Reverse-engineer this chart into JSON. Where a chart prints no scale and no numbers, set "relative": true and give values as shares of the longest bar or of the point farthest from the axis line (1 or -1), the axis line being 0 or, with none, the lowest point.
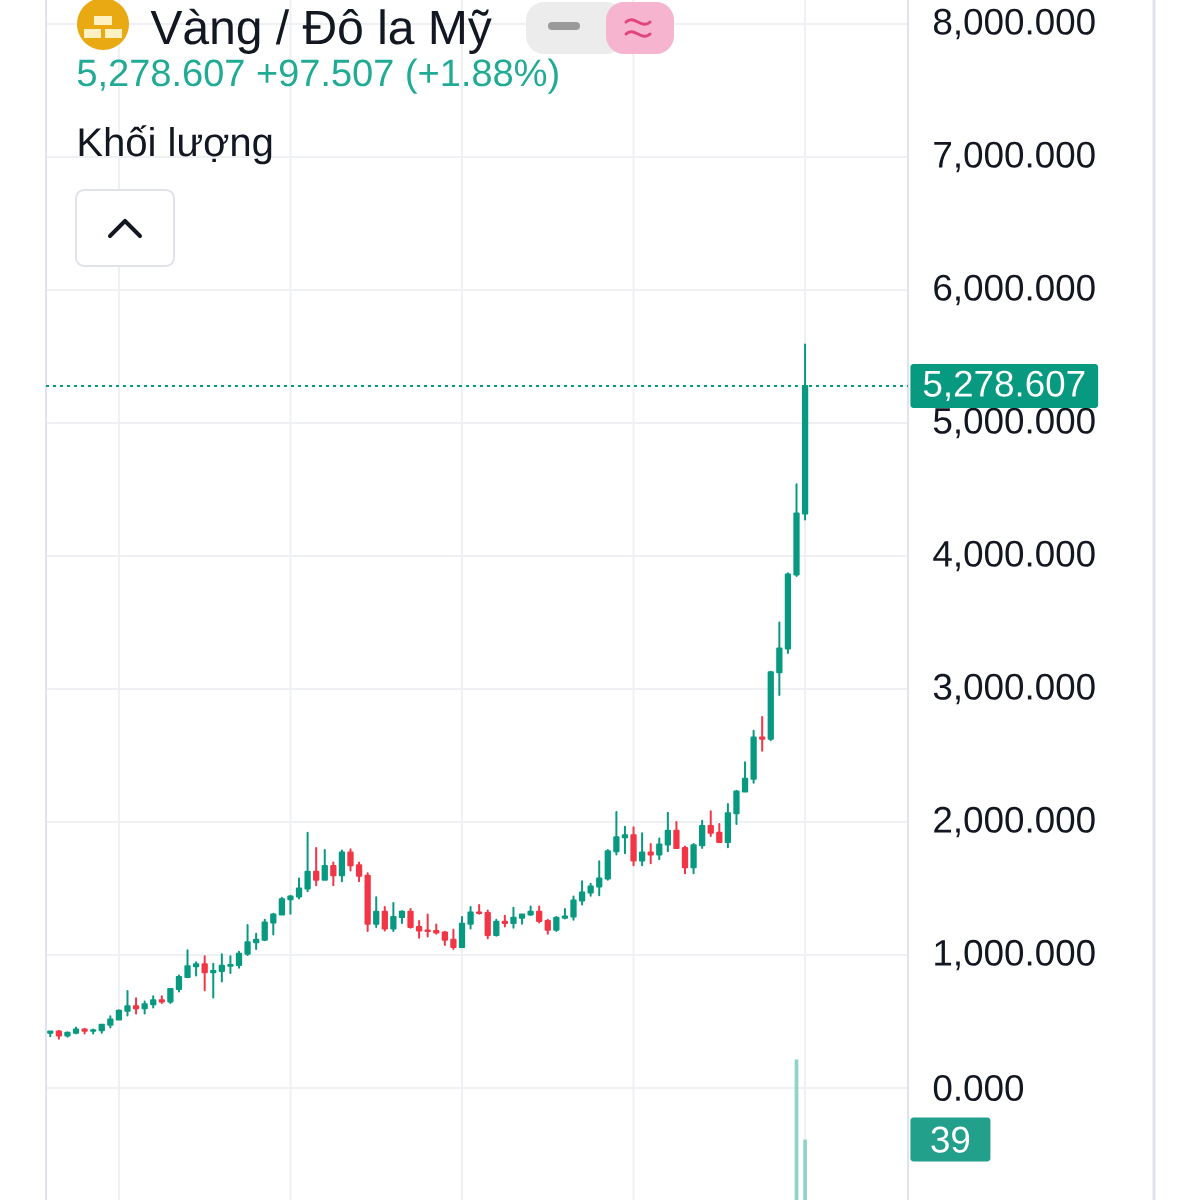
{
  "chart_data": [
    {
      "type": "candlestick",
      "title": "Vàng / Đô la Mỹ",
      "subtitle": "5,278.607 +97.507 (+1.88%)",
      "categories": [
        null,
        null,
        null,
        null,
        null,
        null,
        null,
        null,
        null,
        null,
        null,
        null,
        null,
        null,
        null,
        null,
        null,
        null,
        null,
        null,
        null,
        null,
        null,
        null,
        null,
        null,
        null,
        null,
        null,
        null,
        null,
        null,
        null,
        null,
        null,
        null,
        null,
        null,
        null,
        null,
        null,
        null,
        null,
        null,
        null,
        null,
        null,
        null,
        null,
        null,
        null,
        null,
        null,
        null,
        null,
        null,
        null,
        null,
        null,
        null,
        null,
        null,
        null,
        null,
        null,
        null,
        null,
        null,
        null,
        null,
        null,
        null,
        null,
        null,
        null,
        null,
        null,
        null,
        null,
        null,
        null,
        null,
        null,
        null,
        null,
        null,
        null,
        null,
        null
      ],
      "ohlc": [
        [
          415,
          425,
          390,
          425
        ],
        [
          425,
          430,
          370,
          395
        ],
        [
          395,
          420,
          385,
          415
        ],
        [
          415,
          455,
          410,
          440
        ],
        [
          440,
          445,
          410,
          430
        ],
        [
          430,
          440,
          410,
          435
        ],
        [
          435,
          475,
          415,
          475
        ],
        [
          475,
          540,
          455,
          515
        ],
        [
          515,
          585,
          515,
          580
        ],
        [
          580,
          730,
          545,
          615
        ],
        [
          615,
          675,
          560,
          600
        ],
        [
          600,
          650,
          560,
          630
        ],
        [
          630,
          690,
          605,
          660
        ],
        [
          660,
          690,
          640,
          650
        ],
        [
          650,
          745,
          640,
          745
        ],
        [
          745,
          845,
          725,
          835
        ],
        [
          835,
          1035,
          835,
          915
        ],
        [
          915,
          945,
          845,
          930
        ],
        [
          930,
          990,
          735,
          870
        ],
        [
          870,
          935,
          680,
          880
        ],
        [
          880,
          1005,
          800,
          920
        ],
        [
          920,
          990,
          865,
          925
        ],
        [
          925,
          1025,
          905,
          1010
        ],
        [
          1010,
          1225,
          1000,
          1095
        ],
        [
          1095,
          1160,
          1045,
          1115
        ],
        [
          1115,
          1265,
          1110,
          1245
        ],
        [
          1245,
          1310,
          1155,
          1305
        ],
        [
          1305,
          1430,
          1305,
          1420
        ],
        [
          1420,
          1445,
          1310,
          1440
        ],
        [
          1440,
          1575,
          1425,
          1500
        ],
        [
          1500,
          1920,
          1480,
          1625
        ],
        [
          1625,
          1805,
          1525,
          1565
        ],
        [
          1565,
          1790,
          1565,
          1670
        ],
        [
          1670,
          1695,
          1525,
          1600
        ],
        [
          1600,
          1785,
          1555,
          1770
        ],
        [
          1770,
          1795,
          1635,
          1675
        ],
        [
          1675,
          1695,
          1555,
          1595
        ],
        [
          1595,
          1615,
          1180,
          1235
        ],
        [
          1235,
          1435,
          1210,
          1325
        ],
        [
          1325,
          1360,
          1185,
          1200
        ],
        [
          1200,
          1390,
          1180,
          1285
        ],
        [
          1285,
          1330,
          1240,
          1325
        ],
        [
          1325,
          1345,
          1205,
          1210
        ],
        [
          1210,
          1255,
          1130,
          1185
        ],
        [
          1185,
          1305,
          1140,
          1180
        ],
        [
          1180,
          1230,
          1160,
          1170
        ],
        [
          1170,
          1175,
          1075,
          1115
        ],
        [
          1115,
          1190,
          1045,
          1060
        ],
        [
          1060,
          1285,
          1060,
          1235
        ],
        [
          1235,
          1360,
          1200,
          1320
        ],
        [
          1320,
          1375,
          1310,
          1315
        ],
        [
          1315,
          1335,
          1125,
          1150
        ],
        [
          1150,
          1265,
          1145,
          1250
        ],
        [
          1250,
          1295,
          1215,
          1240
        ],
        [
          1240,
          1355,
          1205,
          1280
        ],
        [
          1280,
          1305,
          1235,
          1305
        ],
        [
          1305,
          1365,
          1300,
          1325
        ],
        [
          1325,
          1365,
          1245,
          1255
        ],
        [
          1255,
          1265,
          1160,
          1190
        ],
        [
          1190,
          1285,
          1180,
          1280
        ],
        [
          1280,
          1345,
          1275,
          1290
        ],
        [
          1290,
          1440,
          1265,
          1410
        ],
        [
          1410,
          1555,
          1380,
          1470
        ],
        [
          1470,
          1535,
          1445,
          1515
        ],
        [
          1515,
          1705,
          1450,
          1575
        ],
        [
          1575,
          1790,
          1565,
          1780
        ],
        [
          1780,
          2075,
          1755,
          1885
        ],
        [
          1885,
          1965,
          1765,
          1900
        ],
        [
          1900,
          1960,
          1675,
          1710
        ],
        [
          1710,
          1915,
          1675,
          1770
        ],
        [
          1770,
          1835,
          1690,
          1755
        ],
        [
          1755,
          1875,
          1720,
          1830
        ],
        [
          1830,
          2070,
          1780,
          1935
        ],
        [
          1935,
          2000,
          1805,
          1805
        ],
        [
          1805,
          1815,
          1615,
          1660
        ],
        [
          1660,
          1835,
          1615,
          1825
        ],
        [
          1825,
          2010,
          1805,
          1970
        ],
        [
          1970,
          2080,
          1895,
          1920
        ],
        [
          1920,
          1985,
          1850,
          1850
        ],
        [
          1850,
          2135,
          1810,
          2065
        ],
        [
          2065,
          2235,
          1985,
          2230
        ],
        [
          2230,
          2450,
          2230,
          2325
        ],
        [
          2325,
          2685,
          2295,
          2635
        ],
        [
          2635,
          2790,
          2535,
          2625
        ],
        [
          2625,
          3130,
          2615,
          3125
        ],
        [
          3125,
          3500,
          2955,
          3305
        ],
        [
          3305,
          3870,
          3270,
          3860
        ],
        [
          3860,
          4540,
          3850,
          4320
        ],
        [
          4320,
          5590,
          4275,
          5278.607
        ]
      ],
      "colors": [
        "#089981",
        "#f23645",
        "#089981",
        "#089981",
        "#f23645",
        "#089981",
        "#089981",
        "#089981",
        "#089981",
        "#089981",
        "#f23645",
        "#089981",
        "#089981",
        "#f23645",
        "#089981",
        "#089981",
        "#089981",
        "#089981",
        "#f23645",
        "#089981",
        "#089981",
        "#089981",
        "#089981",
        "#089981",
        "#089981",
        "#089981",
        "#089981",
        "#089981",
        "#089981",
        "#089981",
        "#089981",
        "#f23645",
        "#089981",
        "#f23645",
        "#089981",
        "#f23645",
        "#f23645",
        "#f23645",
        "#089981",
        "#f23645",
        "#089981",
        "#089981",
        "#f23645",
        "#f23645",
        "#f23645",
        "#f23645",
        "#f23645",
        "#f23645",
        "#089981",
        "#089981",
        "#f23645",
        "#f23645",
        "#089981",
        "#f23645",
        "#089981",
        "#089981",
        "#089981",
        "#f23645",
        "#f23645",
        "#089981",
        "#089981",
        "#089981",
        "#089981",
        "#089981",
        "#089981",
        "#089981",
        "#089981",
        "#089981",
        "#f23645",
        "#089981",
        "#f23645",
        "#089981",
        "#089981",
        "#f23645",
        "#f23645",
        "#089981",
        "#089981",
        "#f23645",
        "#f23645",
        "#089981",
        "#089981",
        "#089981",
        "#089981",
        "#f23645",
        "#089981",
        "#089981",
        "#089981",
        "#089981",
        "#089981"
      ],
      "ylim": [
        -842,
        8180
      ],
      "yticks": [
        {
          "value": 0,
          "label": "0.000"
        },
        {
          "value": 1000,
          "label": "1,000.000"
        },
        {
          "value": 2000,
          "label": "2,000.000"
        },
        {
          "value": 3000,
          "label": "3,000.000"
        },
        {
          "value": 4000,
          "label": "4,000.000"
        },
        {
          "value": 5000,
          "label": "5,000.000"
        },
        {
          "value": 6000,
          "label": "6,000.000"
        },
        {
          "value": 7000,
          "label": "7,000.000"
        },
        {
          "value": 8000,
          "label": "8,000.000"
        }
      ],
      "grid": true,
      "tick_labels": "y",
      "ref_lines": [
        {
          "axis": "y",
          "value": 5278.607,
          "label": "5,278.607",
          "color": "#089981",
          "line_style": "dotted"
        }
      ]
    },
    {
      "type": "bar",
      "title": "Khối lượng",
      "relative": true,
      "color": "#8fd4c8",
      "annotations": [
        "39"
      ],
      "categories": [
        null,
        null,
        null,
        null,
        null,
        null,
        null,
        null,
        null,
        null,
        null,
        null,
        null,
        null,
        null,
        null,
        null,
        null,
        null,
        null,
        null,
        null,
        null,
        null,
        null,
        null,
        null,
        null,
        null,
        null,
        null,
        null,
        null,
        null,
        null,
        null,
        null,
        null,
        null,
        null,
        null,
        null,
        null,
        null,
        null,
        null,
        null,
        null,
        null,
        null,
        null,
        null,
        null,
        null,
        null,
        null,
        null,
        null,
        null,
        null,
        null,
        null,
        null,
        null,
        null,
        null,
        null,
        null,
        null,
        null,
        null,
        null,
        null,
        null,
        null,
        null,
        null,
        null,
        null,
        null,
        null,
        null,
        null,
        null,
        null,
        null,
        null,
        null,
        null
      ],
      "values": [
        null,
        null,
        null,
        null,
        null,
        null,
        null,
        null,
        null,
        null,
        null,
        null,
        null,
        null,
        null,
        null,
        null,
        null,
        null,
        null,
        null,
        null,
        null,
        null,
        null,
        null,
        null,
        null,
        null,
        null,
        null,
        null,
        null,
        null,
        null,
        null,
        null,
        null,
        null,
        null,
        null,
        null,
        null,
        null,
        null,
        null,
        null,
        null,
        null,
        null,
        null,
        null,
        null,
        null,
        null,
        null,
        null,
        null,
        null,
        null,
        null,
        null,
        null,
        null,
        null,
        null,
        null,
        null,
        null,
        null,
        null,
        null,
        null,
        null,
        null,
        null,
        null,
        null,
        null,
        null,
        null,
        null,
        null,
        null,
        null,
        null,
        null,
        1,
        0.43
      ]
    }
  ]
}
